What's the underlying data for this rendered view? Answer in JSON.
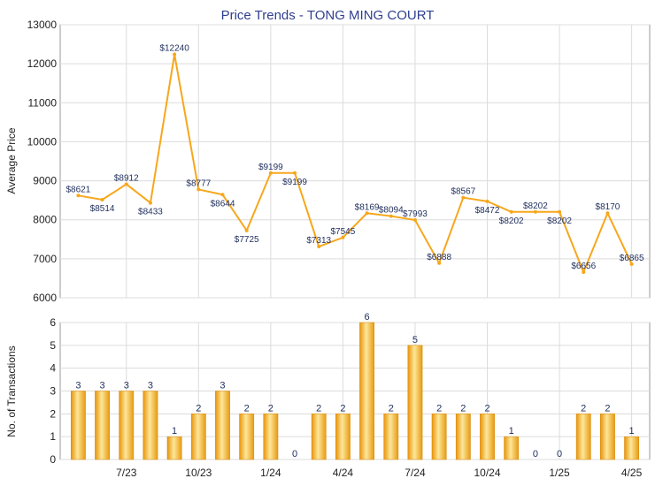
{
  "chart_data": [
    {
      "type": "line",
      "title": "Price Trends - TONG MING COURT",
      "ylabel": "Average Price",
      "ylim": [
        6000,
        13000
      ],
      "yticks": [
        "6000",
        "7000",
        "8000",
        "9000",
        "10000",
        "11000",
        "12000",
        "13000"
      ],
      "values": [
        8621,
        8514,
        8912,
        8433,
        12240,
        8777,
        8644,
        7725,
        9199,
        9199,
        7313,
        7545,
        8169,
        8094,
        7993,
        6888,
        8567,
        8472,
        8202,
        8202,
        8202,
        6656,
        8170,
        6865
      ],
      "labels": [
        "$8621",
        "$8514",
        "$8912",
        "$8433",
        "$12240",
        "$8777",
        "$8644",
        "$7725",
        "$9199",
        "$9199",
        "$7313",
        "$7545",
        "$8169",
        "$8094",
        "$7993",
        "$6888",
        "$8567",
        "$8472",
        "$8202",
        "$8202",
        "$8202",
        "$6656",
        "$8170",
        "$6865"
      ],
      "color": "#f7a71c",
      "grid": true
    },
    {
      "type": "bar",
      "ylabel": "No. of Transactions",
      "ylim": [
        0,
        6
      ],
      "yticks": [
        "0",
        "1",
        "2",
        "3",
        "4",
        "5",
        "6"
      ],
      "categories": [
        "",
        "",
        "7/23",
        "",
        "",
        "10/23",
        "",
        "",
        "1/24",
        "",
        "",
        "4/24",
        "",
        "",
        "7/24",
        "",
        "",
        "10/24",
        "",
        "",
        "1/25",
        "",
        "",
        "4/25"
      ],
      "values": [
        3,
        3,
        3,
        3,
        1,
        2,
        3,
        2,
        2,
        0,
        2,
        2,
        6,
        2,
        5,
        2,
        2,
        2,
        1,
        0,
        0,
        2,
        2,
        1
      ],
      "color": "#f3a81d",
      "grid": true
    }
  ]
}
